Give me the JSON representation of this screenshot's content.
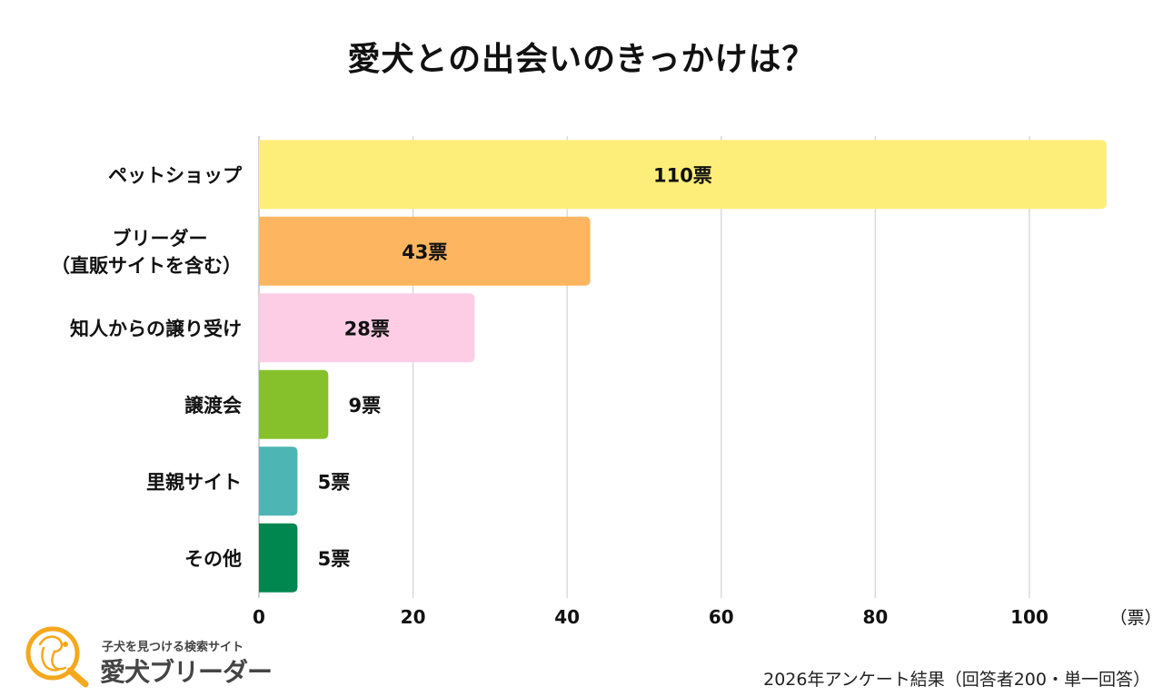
{
  "chart_data": {
    "type": "bar",
    "orientation": "horizontal",
    "title": "愛犬との出会いのきっかけは？",
    "categories": [
      "ペットショップ",
      "ブリーダー\n（直販サイトを含む）",
      "知人からの譲り受け",
      "譲渡会",
      "里親サイト",
      "その他"
    ],
    "values": [
      110,
      43,
      28,
      9,
      5,
      5
    ],
    "value_labels": [
      "110票",
      "43票",
      "28票",
      "9票",
      "5票",
      "5票"
    ],
    "colors": [
      "#FDEE7A",
      "#FDB55F",
      "#FDCDE6",
      "#86C12B",
      "#4DB6B4",
      "#00874F"
    ],
    "xlabel": "",
    "ylabel": "",
    "unit_label": "（票）",
    "xlim": [
      0,
      110
    ],
    "xticks": [
      0,
      20,
      40,
      60,
      80,
      100
    ],
    "grid": true,
    "legend": "none"
  },
  "footnote": "2026年アンケート結果（回答者200・単一回答）",
  "logo": {
    "tagline": "子犬を見つける検索サイト",
    "name": "愛犬ブリーダー",
    "color": "#F5A81C"
  }
}
